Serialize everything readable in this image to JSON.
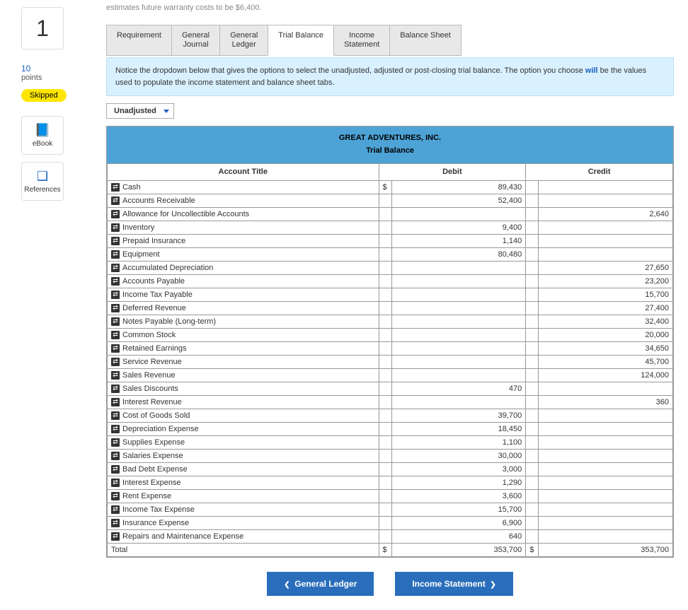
{
  "question": {
    "number": "1",
    "points": "10",
    "points_label": "points",
    "status": "Skipped"
  },
  "tools": {
    "ebook": "eBook",
    "references": "References"
  },
  "top_text": "estimates future warranty costs to be $6,400.",
  "tabs": [
    {
      "label": "Requirement"
    },
    {
      "label": "General\nJournal"
    },
    {
      "label": "General\nLedger"
    },
    {
      "label": "Trial Balance"
    },
    {
      "label": "Income\nStatement"
    },
    {
      "label": "Balance Sheet"
    }
  ],
  "notice_a": "Notice the dropdown below that gives the options to select the unadjusted, adjusted or post-closing trial balance. The option you choose ",
  "notice_will": "will",
  "notice_b": " be the values used to populate the income statement and balance sheet tabs.",
  "dropdown_value": "Unadjusted",
  "company": "GREAT ADVENTURES, INC.",
  "report_title": "Trial Balance",
  "col_account": "Account Title",
  "col_debit": "Debit",
  "col_credit": "Credit",
  "currency": "$",
  "rows": [
    {
      "title": "Cash",
      "debit": "89,430",
      "credit": ""
    },
    {
      "title": "Accounts Receivable",
      "debit": "52,400",
      "credit": ""
    },
    {
      "title": "Allowance for Uncollectible Accounts",
      "debit": "",
      "credit": "2,640"
    },
    {
      "title": "Inventory",
      "debit": "9,400",
      "credit": ""
    },
    {
      "title": "Prepaid Insurance",
      "debit": "1,140",
      "credit": ""
    },
    {
      "title": "Equipment",
      "debit": "80,480",
      "credit": ""
    },
    {
      "title": "Accumulated Depreciation",
      "debit": "",
      "credit": "27,650"
    },
    {
      "title": "Accounts Payable",
      "debit": "",
      "credit": "23,200"
    },
    {
      "title": "Income Tax Payable",
      "debit": "",
      "credit": "15,700"
    },
    {
      "title": "Deferred Revenue",
      "debit": "",
      "credit": "27,400"
    },
    {
      "title": "Notes Payable (Long-term)",
      "debit": "",
      "credit": "32,400"
    },
    {
      "title": "Common Stock",
      "debit": "",
      "credit": "20,000"
    },
    {
      "title": "Retained Earnings",
      "debit": "",
      "credit": "34,650"
    },
    {
      "title": "Service Revenue",
      "debit": "",
      "credit": "45,700"
    },
    {
      "title": "Sales Revenue",
      "debit": "",
      "credit": "124,000"
    },
    {
      "title": "Sales Discounts",
      "debit": "470",
      "credit": ""
    },
    {
      "title": "Interest Revenue",
      "debit": "",
      "credit": "360"
    },
    {
      "title": "Cost of Goods Sold",
      "debit": "39,700",
      "credit": ""
    },
    {
      "title": "Depreciation Expense",
      "debit": "18,450",
      "credit": ""
    },
    {
      "title": "Supplies Expense",
      "debit": "1,100",
      "credit": ""
    },
    {
      "title": "Salaries Expense",
      "debit": "30,000",
      "credit": ""
    },
    {
      "title": "Bad Debt Expense",
      "debit": "3,000",
      "credit": ""
    },
    {
      "title": "Interest Expense",
      "debit": "1,290",
      "credit": ""
    },
    {
      "title": "Rent Expense",
      "debit": "3,600",
      "credit": ""
    },
    {
      "title": "Income Tax Expense",
      "debit": "15,700",
      "credit": ""
    },
    {
      "title": "Insurance Expense",
      "debit": "6,900",
      "credit": ""
    },
    {
      "title": "Repairs and Maintenance Expense",
      "debit": "640",
      "credit": ""
    }
  ],
  "total_label": "Total",
  "total_debit": "353,700",
  "total_credit": "353,700",
  "nav_prev": "General Ledger",
  "nav_next": "Income Statement"
}
